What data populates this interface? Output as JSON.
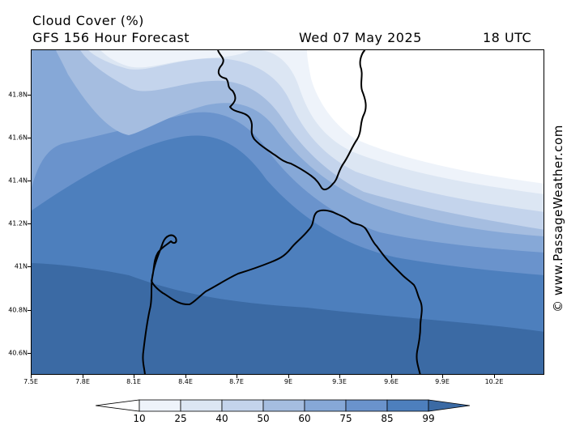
{
  "header": {
    "title": "Cloud Cover (%)",
    "model": "GFS 156 Hour Forecast",
    "date": "Wed 07 May 2025",
    "time": "18 UTC"
  },
  "map": {
    "lat_labels": [
      "41.8N",
      "41.6N",
      "41.4N",
      "41.2N",
      "41N",
      "40.8N",
      "40.6N"
    ],
    "lon_labels": [
      "7.5E",
      "7.8E",
      "8.1E",
      "8.4E",
      "8.7E",
      "9E",
      "9.3E",
      "9.6E",
      "9.9E",
      "10.2E"
    ],
    "coastline_color": "#000000",
    "band_colors": [
      "#ffffff",
      "#eef3fa",
      "#dce6f3",
      "#c4d4ec",
      "#a5bde0",
      "#86a8d7",
      "#6a93cc",
      "#4d7fbd",
      "#3b6aa4"
    ]
  },
  "colorbar": {
    "levels": [
      "10",
      "25",
      "40",
      "50",
      "60",
      "75",
      "85",
      "99"
    ],
    "colors": [
      "#ffffff",
      "#eef3fa",
      "#dce6f3",
      "#c4d4ec",
      "#a5bde0",
      "#86a8d7",
      "#6a93cc",
      "#4d7fbd",
      "#3b6aa4"
    ]
  },
  "copyright": "© www.PassageWeather.com"
}
